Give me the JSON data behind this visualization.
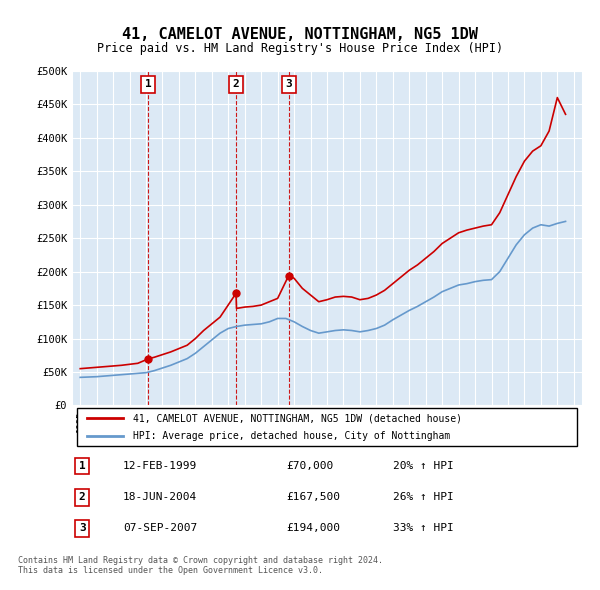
{
  "title": "41, CAMELOT AVENUE, NOTTINGHAM, NG5 1DW",
  "subtitle": "Price paid vs. HM Land Registry's House Price Index (HPI)",
  "background_color": "#dce9f5",
  "plot_bg_color": "#dce9f5",
  "xlabel": "",
  "ylabel": "",
  "ylim": [
    0,
    500000
  ],
  "yticks": [
    0,
    50000,
    100000,
    150000,
    200000,
    250000,
    300000,
    350000,
    400000,
    450000,
    500000
  ],
  "ytick_labels": [
    "£0",
    "£50K",
    "£100K",
    "£150K",
    "£200K",
    "£250K",
    "£300K",
    "£350K",
    "£400K",
    "£450K",
    "£500K"
  ],
  "sale_dates": [
    "1999-02-12",
    "2004-06-18",
    "2007-09-07"
  ],
  "sale_prices": [
    70000,
    167500,
    194000
  ],
  "sale_labels": [
    "1",
    "2",
    "3"
  ],
  "legend_property": "41, CAMELOT AVENUE, NOTTINGHAM, NG5 1DW (detached house)",
  "legend_hpi": "HPI: Average price, detached house, City of Nottingham",
  "table_rows": [
    {
      "label": "1",
      "date": "12-FEB-1999",
      "price": "£70,000",
      "hpi": "20% ↑ HPI"
    },
    {
      "label": "2",
      "date": "18-JUN-2004",
      "price": "£167,500",
      "hpi": "26% ↑ HPI"
    },
    {
      "label": "3",
      "date": "07-SEP-2007",
      "price": "£194,000",
      "hpi": "33% ↑ HPI"
    }
  ],
  "footer": "Contains HM Land Registry data © Crown copyright and database right 2024.\nThis data is licensed under the Open Government Licence v3.0.",
  "property_line_color": "#cc0000",
  "hpi_line_color": "#6699cc",
  "sale_marker_color": "#cc0000",
  "dashed_line_color": "#cc0000",
  "hpi_data_x": [
    1995.0,
    1995.5,
    1996.0,
    1996.5,
    1997.0,
    1997.5,
    1998.0,
    1998.5,
    1999.0,
    1999.5,
    2000.0,
    2000.5,
    2001.0,
    2001.5,
    2002.0,
    2002.5,
    2003.0,
    2003.5,
    2004.0,
    2004.5,
    2005.0,
    2005.5,
    2006.0,
    2006.5,
    2007.0,
    2007.5,
    2008.0,
    2008.5,
    2009.0,
    2009.5,
    2010.0,
    2010.5,
    2011.0,
    2011.5,
    2012.0,
    2012.5,
    2013.0,
    2013.5,
    2014.0,
    2014.5,
    2015.0,
    2015.5,
    2016.0,
    2016.5,
    2017.0,
    2017.5,
    2018.0,
    2018.5,
    2019.0,
    2019.5,
    2020.0,
    2020.5,
    2021.0,
    2021.5,
    2022.0,
    2022.5,
    2023.0,
    2023.5,
    2024.0,
    2024.5
  ],
  "hpi_data_y": [
    42000,
    42500,
    43000,
    44000,
    45000,
    46000,
    47000,
    48000,
    49000,
    52000,
    56000,
    60000,
    65000,
    70000,
    78000,
    88000,
    98000,
    108000,
    115000,
    118000,
    120000,
    121000,
    122000,
    125000,
    130000,
    130000,
    125000,
    118000,
    112000,
    108000,
    110000,
    112000,
    113000,
    112000,
    110000,
    112000,
    115000,
    120000,
    128000,
    135000,
    142000,
    148000,
    155000,
    162000,
    170000,
    175000,
    180000,
    182000,
    185000,
    187000,
    188000,
    200000,
    220000,
    240000,
    255000,
    265000,
    270000,
    268000,
    272000,
    275000
  ],
  "property_data_x": [
    1995.0,
    1995.5,
    1996.0,
    1996.5,
    1997.0,
    1997.5,
    1998.0,
    1998.5,
    1999.17,
    1999.5,
    2000.0,
    2000.5,
    2001.0,
    2001.5,
    2002.0,
    2002.5,
    2003.0,
    2003.5,
    2004.47,
    2004.5,
    2005.0,
    2005.5,
    2006.0,
    2006.5,
    2007.0,
    2007.67,
    2008.0,
    2008.5,
    2009.0,
    2009.5,
    2010.0,
    2010.5,
    2011.0,
    2011.5,
    2012.0,
    2012.5,
    2013.0,
    2013.5,
    2014.0,
    2014.5,
    2015.0,
    2015.5,
    2016.0,
    2016.5,
    2017.0,
    2017.5,
    2018.0,
    2018.5,
    2019.0,
    2019.5,
    2020.0,
    2020.5,
    2021.0,
    2021.5,
    2022.0,
    2022.5,
    2023.0,
    2023.5,
    2024.0,
    2024.5
  ],
  "property_data_y": [
    55000,
    56000,
    57000,
    58000,
    59000,
    60000,
    61500,
    63000,
    70000,
    72000,
    76000,
    80000,
    85000,
    90000,
    100000,
    112000,
    122000,
    132000,
    167500,
    145000,
    147000,
    148000,
    150000,
    155000,
    160000,
    194000,
    190000,
    175000,
    165000,
    155000,
    158000,
    162000,
    163000,
    162000,
    158000,
    160000,
    165000,
    172000,
    182000,
    192000,
    202000,
    210000,
    220000,
    230000,
    242000,
    250000,
    258000,
    262000,
    265000,
    268000,
    270000,
    288000,
    315000,
    342000,
    365000,
    380000,
    388000,
    410000,
    460000,
    435000
  ]
}
